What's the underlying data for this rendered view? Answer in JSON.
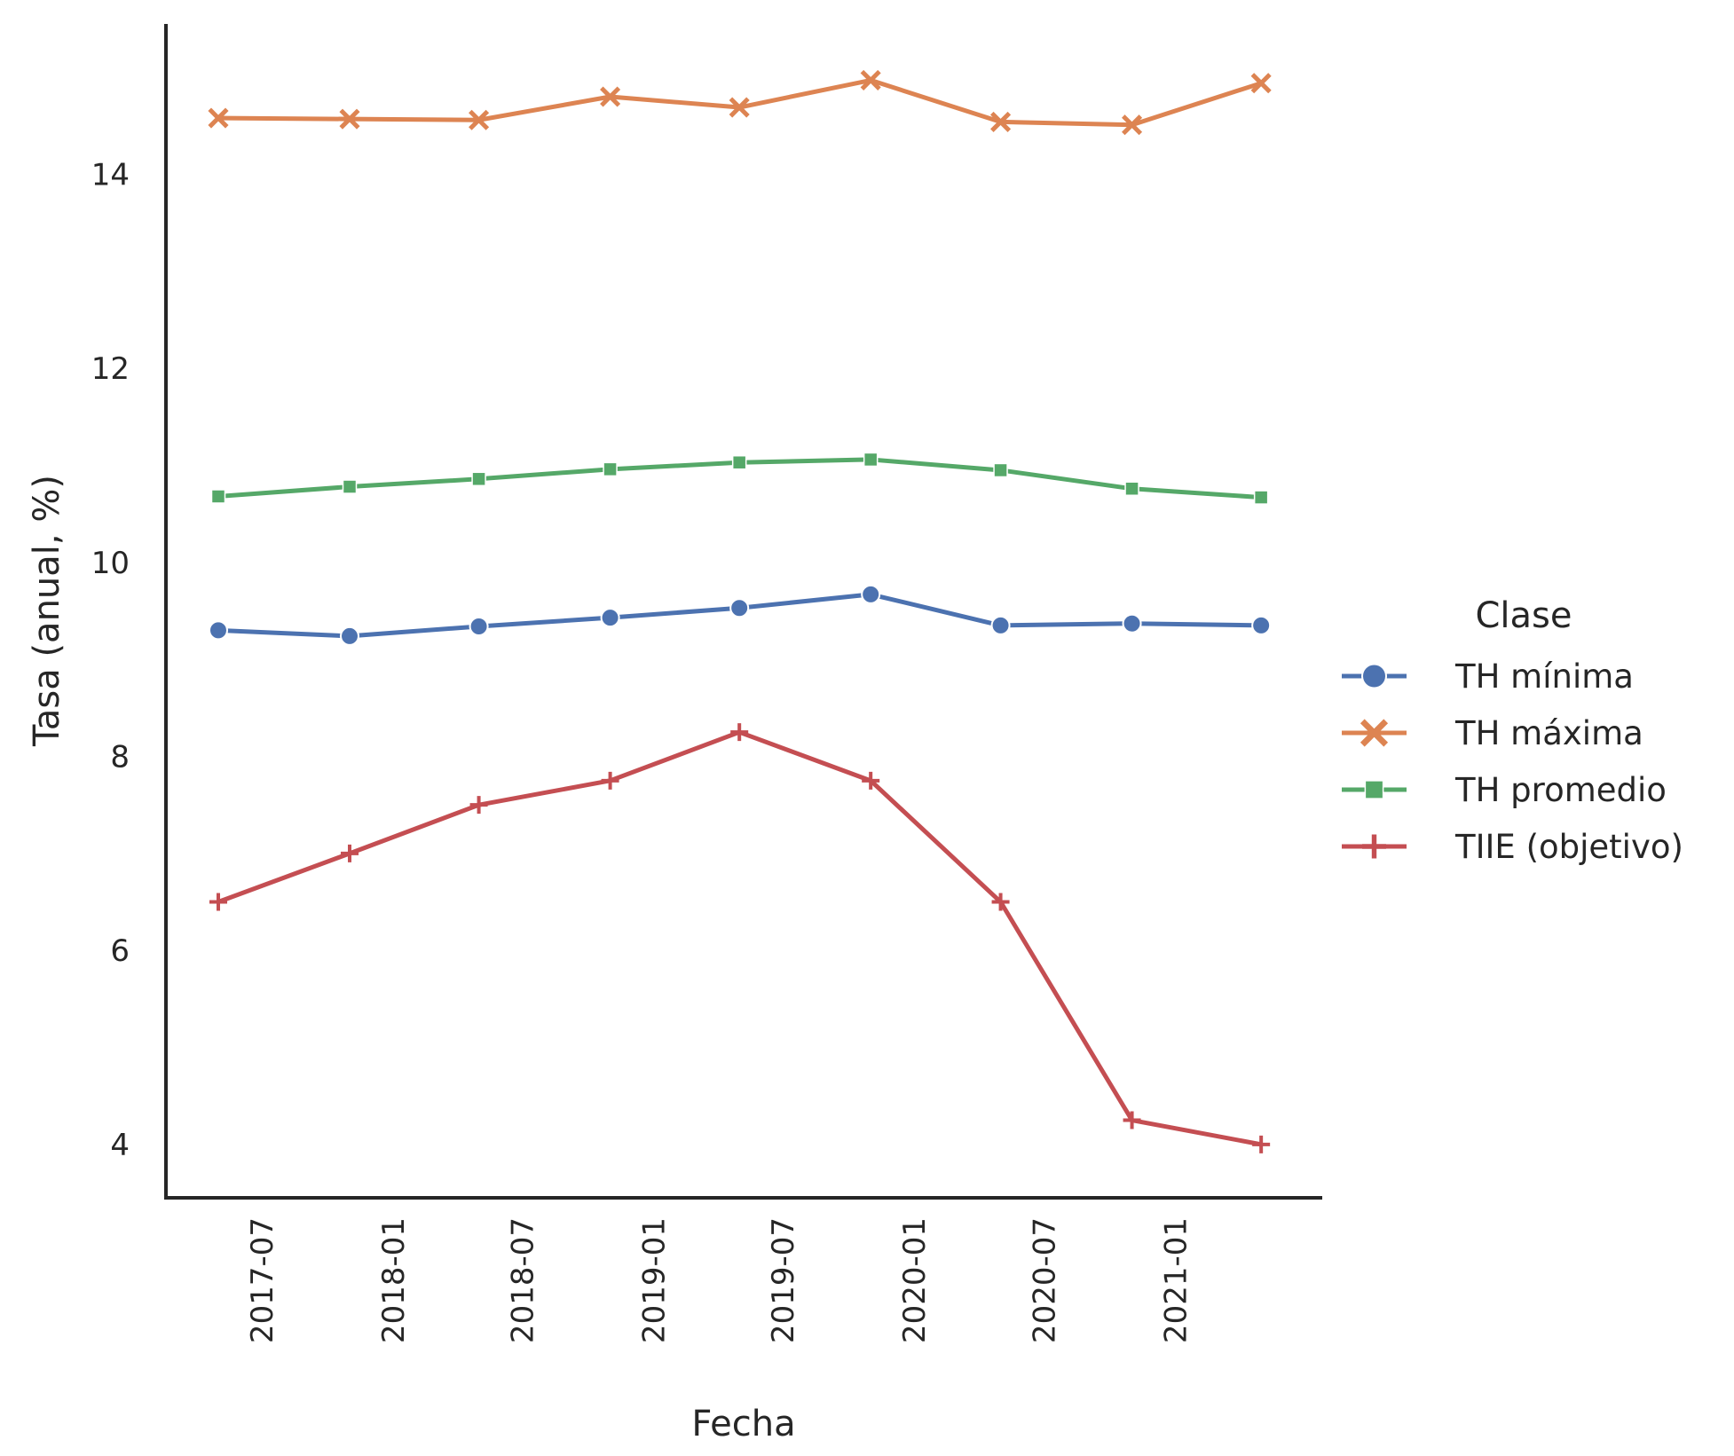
{
  "chart_data": {
    "type": "line",
    "x": [
      "2017-05-01",
      "2017-11-01",
      "2018-05-01",
      "2018-11-01",
      "2019-05-01",
      "2019-11-01",
      "2020-05-01",
      "2020-11-01",
      "2021-05-01"
    ],
    "xlabel": "Fecha",
    "ylabel": "Tasa (anual, %)",
    "ylim": [
      3.45,
      15.55
    ],
    "yticks": [
      4,
      6,
      8,
      10,
      12,
      14
    ],
    "xticks": [
      "2017-07",
      "2018-01",
      "2018-07",
      "2019-01",
      "2019-07",
      "2020-01",
      "2020-07",
      "2021-01"
    ],
    "grid": false,
    "legend": {
      "title": "Clase",
      "placement": "right"
    },
    "series": [
      {
        "name": "TH mínima",
        "color": "#4c72b0",
        "marker": "circle",
        "values": [
          9.3,
          9.24,
          9.34,
          9.43,
          9.53,
          9.67,
          9.35,
          9.37,
          9.35
        ]
      },
      {
        "name": "TH máxima",
        "color": "#dd8452",
        "marker": "x",
        "values": [
          14.58,
          14.57,
          14.56,
          14.8,
          14.69,
          14.97,
          14.54,
          14.51,
          14.94
        ]
      },
      {
        "name": "TH promedio",
        "color": "#55a868",
        "marker": "square",
        "values": [
          10.68,
          10.78,
          10.86,
          10.96,
          11.03,
          11.06,
          10.95,
          10.76,
          10.67
        ]
      },
      {
        "name": "TIIE (objetivo)",
        "color": "#c44e52",
        "marker": "plus",
        "values": [
          6.5,
          7.0,
          7.5,
          7.75,
          8.25,
          7.75,
          6.5,
          4.25,
          4.0
        ]
      }
    ]
  }
}
